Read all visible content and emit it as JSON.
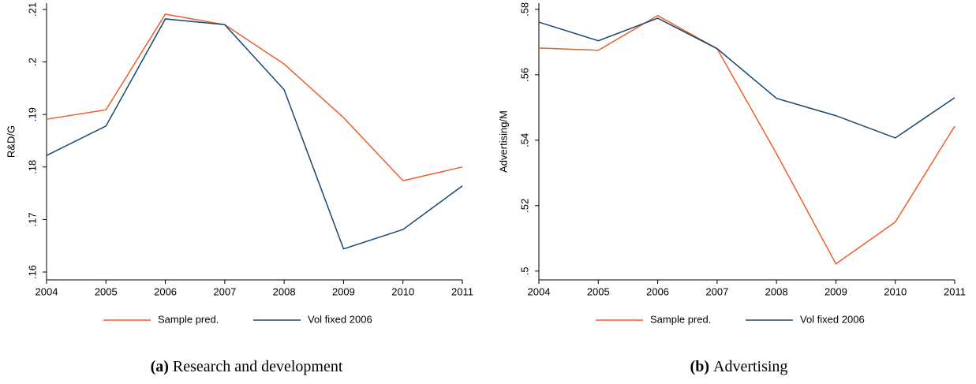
{
  "chart_data": [
    {
      "type": "line",
      "y_label": "R&D/G",
      "caption_label": "(a)",
      "caption": "Research and development",
      "x": [
        2004,
        2005,
        2006,
        2007,
        2008,
        2009,
        2010,
        2011
      ],
      "xlim": [
        2004,
        2011
      ],
      "xticks": [
        2004,
        2005,
        2006,
        2007,
        2008,
        2009,
        2010,
        2011
      ],
      "ylim": [
        0.1585,
        0.2112
      ],
      "yticks": [
        {
          "value": 0.16,
          "label": ".16"
        },
        {
          "value": 0.17,
          "label": ".17"
        },
        {
          "value": 0.18,
          "label": ".18"
        },
        {
          "value": 0.19,
          "label": ".19"
        },
        {
          "value": 0.2,
          "label": ".2"
        },
        {
          "value": 0.21,
          "label": ".21"
        }
      ],
      "series": [
        {
          "name": "Sample pred.",
          "color": "#e8612c",
          "values": [
            0.1891,
            0.1909,
            0.2091,
            0.2071,
            0.1996,
            0.1894,
            0.1774,
            0.18
          ]
        },
        {
          "name": "Vol fixed 2006",
          "color": "#1a476f",
          "values": [
            0.1822,
            0.1878,
            0.2082,
            0.2071,
            0.1947,
            0.1644,
            0.1681,
            0.1764
          ]
        }
      ]
    },
    {
      "type": "line",
      "y_label": "Advertising/M",
      "caption_label": "(b)",
      "caption": "Advertising",
      "x": [
        2004,
        2005,
        2006,
        2007,
        2008,
        2009,
        2010,
        2011
      ],
      "xlim": [
        2004,
        2011
      ],
      "xticks": [
        2004,
        2005,
        2006,
        2007,
        2008,
        2009,
        2010,
        2011
      ],
      "ylim": [
        0.4973,
        0.5819
      ],
      "yticks": [
        {
          "value": 0.5,
          "label": ".5"
        },
        {
          "value": 0.52,
          "label": ".52"
        },
        {
          "value": 0.54,
          "label": ".54"
        },
        {
          "value": 0.56,
          "label": ".56"
        },
        {
          "value": 0.58,
          "label": ".58"
        }
      ],
      "series": [
        {
          "name": "Sample pred.",
          "color": "#e8612c",
          "values": [
            0.5682,
            0.5675,
            0.5781,
            0.568,
            0.5359,
            0.5022,
            0.515,
            0.5443
          ]
        },
        {
          "name": "Vol fixed 2006",
          "color": "#1a476f",
          "values": [
            0.5761,
            0.5704,
            0.5773,
            0.568,
            0.5528,
            0.5475,
            0.5407,
            0.553
          ]
        }
      ]
    }
  ]
}
